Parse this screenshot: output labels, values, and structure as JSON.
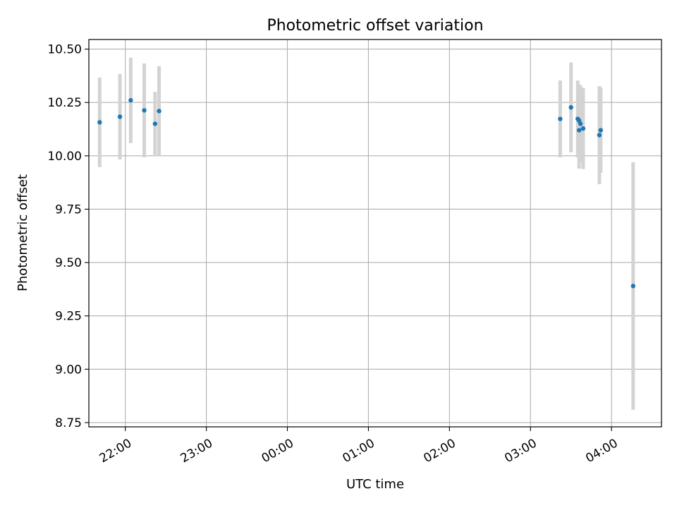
{
  "chart_data": {
    "type": "scatter",
    "title": "Photometric offset variation",
    "xlabel": "UTC time",
    "ylabel": "Photometric offset",
    "grid": true,
    "legend": "none",
    "x_axis_type": "time",
    "xlim": [
      "21:33",
      "04:37"
    ],
    "ylim": [
      8.73,
      10.545
    ],
    "x_ticks": [
      "22:00",
      "23:00",
      "00:00",
      "01:00",
      "02:00",
      "03:00",
      "04:00"
    ],
    "y_ticks": [
      "8.75",
      "9.00",
      "9.25",
      "9.50",
      "9.75",
      "10.00",
      "10.25",
      "10.50"
    ],
    "series": [
      {
        "points": [
          {
            "x": "21:41",
            "y": 10.157,
            "err": 0.21
          },
          {
            "x": "21:56",
            "y": 10.183,
            "err": 0.2
          },
          {
            "x": "22:04",
            "y": 10.26,
            "err": 0.2
          },
          {
            "x": "22:14",
            "y": 10.213,
            "err": 0.22
          },
          {
            "x": "22:22",
            "y": 10.15,
            "err": 0.15
          },
          {
            "x": "22:25",
            "y": 10.21,
            "err": 0.21
          },
          {
            "x": "03:22",
            "y": 10.173,
            "err": 0.18
          },
          {
            "x": "03:30",
            "y": 10.227,
            "err": 0.21
          },
          {
            "x": "03:35",
            "y": 10.173,
            "err": 0.18
          },
          {
            "x": "03:36",
            "y": 10.165,
            "err": 0.17
          },
          {
            "x": "03:36",
            "y": 10.12,
            "err": 0.18
          },
          {
            "x": "03:37",
            "y": 10.15,
            "err": 0.18
          },
          {
            "x": "03:39",
            "y": 10.128,
            "err": 0.19
          },
          {
            "x": "03:51",
            "y": 10.097,
            "err": 0.23
          },
          {
            "x": "03:52",
            "y": 10.12,
            "err": 0.2
          },
          {
            "x": "04:16",
            "y": 9.39,
            "err": 0.58
          }
        ]
      }
    ],
    "colors": {
      "marker": "#1f77b4",
      "errorbar": "#d3d3d3",
      "grid": "#b0b0b0",
      "axes": "#000000"
    }
  }
}
